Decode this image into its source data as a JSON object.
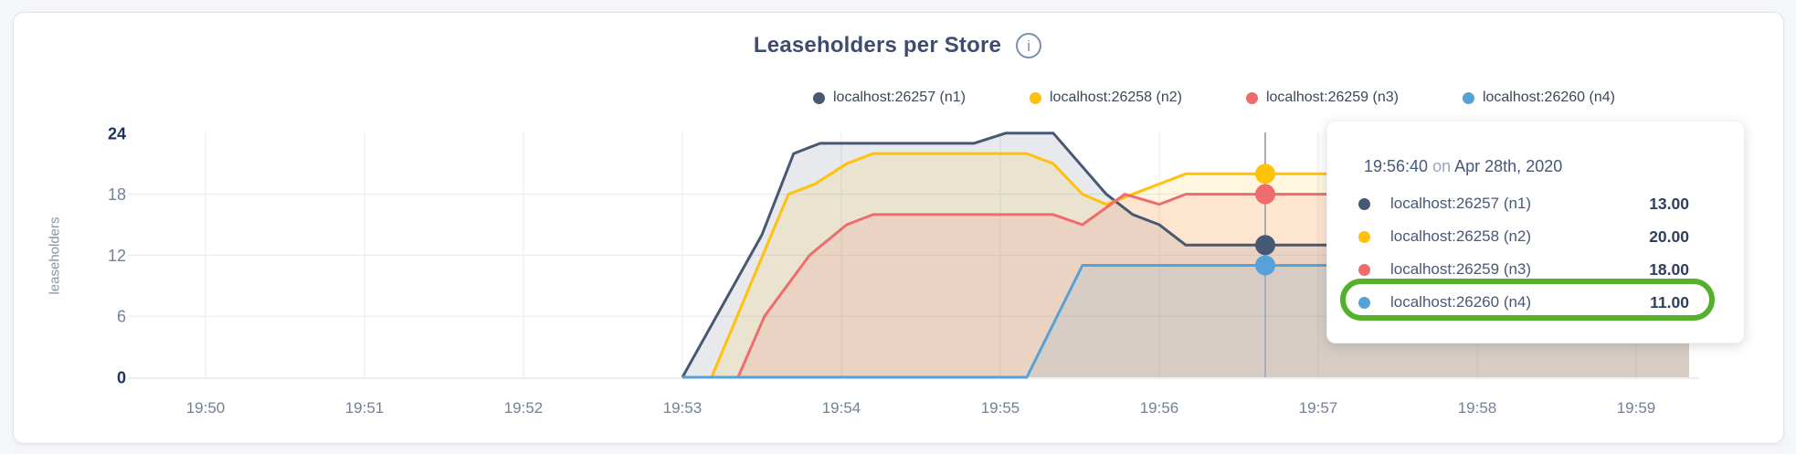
{
  "chart_data": {
    "type": "area",
    "title": "Leaseholders per Store",
    "info_icon": "i",
    "ylabel": "leaseholders",
    "ylim": [
      0,
      24
    ],
    "y_ticks": [
      "0",
      "6",
      "12",
      "18",
      "24"
    ],
    "x_ticks": [
      "19:50",
      "19:51",
      "19:52",
      "19:53",
      "19:54",
      "19:55",
      "19:56",
      "19:57",
      "19:58",
      "19:59"
    ],
    "x_unit": "seconds after 19:50:00",
    "grid": "on",
    "legend_position": "top-right",
    "series": [
      {
        "id": "n1",
        "name": "localhost:26257 (n1)",
        "color": "#475872",
        "points": [
          [
            180,
            0
          ],
          [
            210,
            14
          ],
          [
            222,
            22
          ],
          [
            232,
            23
          ],
          [
            290,
            23
          ],
          [
            302,
            24
          ],
          [
            320,
            24
          ],
          [
            330,
            21
          ],
          [
            340,
            18
          ],
          [
            350,
            16
          ],
          [
            360,
            15
          ],
          [
            370,
            13
          ],
          [
            560,
            13
          ]
        ]
      },
      {
        "id": "n2",
        "name": "localhost:26258 (n2)",
        "color": "#ffc109",
        "points": [
          [
            191,
            0
          ],
          [
            220,
            18
          ],
          [
            230,
            19
          ],
          [
            242,
            21
          ],
          [
            252,
            22
          ],
          [
            310,
            22
          ],
          [
            320,
            21
          ],
          [
            331,
            18
          ],
          [
            340,
            17
          ],
          [
            370,
            20
          ],
          [
            560,
            20
          ]
        ]
      },
      {
        "id": "n3",
        "name": "localhost:26259 (n3)",
        "color": "#ef6c6c",
        "points": [
          [
            201,
            0
          ],
          [
            211,
            6
          ],
          [
            228,
            12
          ],
          [
            242,
            15
          ],
          [
            252,
            16
          ],
          [
            320,
            16
          ],
          [
            331,
            15
          ],
          [
            347,
            18
          ],
          [
            360,
            17
          ],
          [
            370,
            18
          ],
          [
            560,
            18
          ]
        ]
      },
      {
        "id": "n4",
        "name": "localhost:26260 (n4)",
        "color": "#56a1d8",
        "points": [
          [
            180,
            0
          ],
          [
            310,
            0
          ],
          [
            331,
            11
          ],
          [
            560,
            11
          ]
        ]
      }
    ],
    "hover": {
      "time_seconds": 400,
      "values": {
        "n1": 13,
        "n2": 20,
        "n3": 18,
        "n4": 11
      }
    }
  },
  "tooltip": {
    "time": "19:56:40",
    "connector": "on",
    "date": "Apr 28th, 2020",
    "rows": [
      {
        "series": "n1",
        "label": "localhost:26257 (n1)",
        "value": "13.00"
      },
      {
        "series": "n2",
        "label": "localhost:26258 (n2)",
        "value": "20.00"
      },
      {
        "series": "n3",
        "label": "localhost:26259 (n3)",
        "value": "18.00"
      },
      {
        "series": "n4",
        "label": "localhost:26260 (n4)",
        "value": "11.00"
      }
    ]
  },
  "annotation": {
    "shape": "rounded-outline",
    "color": "#55b02c",
    "highlighted_row_label": "localhost:26260 (n4)",
    "highlighted_row_value": "11.00"
  }
}
